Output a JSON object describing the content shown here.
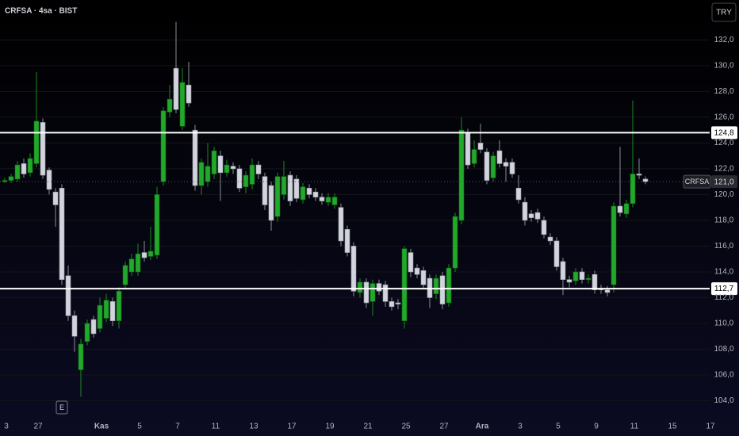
{
  "chart_data": {
    "type": "candlestick",
    "title": "CRFSA · 4sa · BIST",
    "currency": "TRY",
    "event_marker": "E",
    "up_color": "#22a82a",
    "down_color": "#d1d4dc",
    "grid": true,
    "ylim": [
      102.8,
      135.1
    ],
    "yticks": [
      {
        "value": 104,
        "label": "104,0"
      },
      {
        "value": 106,
        "label": "106,0"
      },
      {
        "value": 108,
        "label": "108,0"
      },
      {
        "value": 110,
        "label": "110,0"
      },
      {
        "value": 112,
        "label": "112,0"
      },
      {
        "value": 114,
        "label": "114,0"
      },
      {
        "value": 116,
        "label": "116,0"
      },
      {
        "value": 118,
        "label": "118,0"
      },
      {
        "value": 120,
        "label": "120,0"
      },
      {
        "value": 122,
        "label": "122,0"
      },
      {
        "value": 124,
        "label": "124,0"
      },
      {
        "value": 126,
        "label": "126,0"
      },
      {
        "value": 128,
        "label": "128,0"
      },
      {
        "value": 130,
        "label": "130,0"
      },
      {
        "value": 132,
        "label": "132,0"
      }
    ],
    "hlines": [
      {
        "value": 124.8,
        "label": "124,8"
      },
      {
        "value": 112.7,
        "label": "112,7"
      }
    ],
    "last_price": {
      "symbol": "CRFSA",
      "value": 121.0,
      "label": "121,0"
    },
    "categories": [
      "3",
      null,
      null,
      null,
      null,
      "27",
      null,
      null,
      null,
      null,
      null,
      null,
      null,
      null,
      null,
      "Kas",
      null,
      null,
      null,
      null,
      null,
      "5",
      null,
      null,
      null,
      null,
      null,
      "7",
      null,
      null,
      null,
      null,
      null,
      "11",
      null,
      null,
      null,
      null,
      null,
      "13",
      null,
      null,
      null,
      null,
      null,
      "17",
      null,
      null,
      null,
      null,
      null,
      "19",
      null,
      null,
      null,
      null,
      null,
      "21",
      null,
      null,
      null,
      null,
      null,
      "25",
      null,
      null,
      null,
      null,
      null,
      "27",
      null,
      null,
      null,
      null,
      null,
      "Ara",
      null,
      null,
      null,
      null,
      null,
      "3",
      null,
      null,
      null,
      null,
      null,
      "5",
      null,
      null,
      null,
      null,
      null,
      "9",
      null,
      null,
      null,
      null,
      null,
      "11",
      null,
      null,
      null,
      null,
      null,
      "15",
      null,
      null,
      null,
      null,
      null,
      "17"
    ],
    "open": [
      121.0,
      121.1,
      121.2,
      122.4,
      121.7,
      122.4,
      125.6,
      121.9,
      120.2,
      120.5,
      113.7,
      110.6,
      106.4,
      108.6,
      110.3,
      109.6,
      110.4,
      111.7,
      110.2,
      113.0,
      114.0,
      114.0,
      115.5,
      115.2,
      115.3,
      121.0,
      126.4,
      129.8,
      125.3,
      128.5,
      125.0,
      120.7,
      121.0,
      121.6,
      123.0,
      121.7,
      122.2,
      122.0,
      120.6,
      120.8,
      122.3,
      121.4,
      120.7,
      118.3,
      120.0,
      121.5,
      121.2,
      119.6,
      120.5,
      120.2,
      119.8,
      119.4,
      119.2,
      119.0,
      117.3,
      116.0,
      112.4,
      113.2,
      111.7,
      113.1,
      113.0,
      111.7,
      111.6,
      110.2,
      115.5,
      114.3,
      114.1,
      113.5,
      112.3,
      113.7,
      111.6,
      114.3,
      118.0,
      124.8,
      122.4,
      124.0,
      123.3,
      121.3,
      123.4,
      122.5,
      122.5,
      120.5,
      119.4,
      118.5,
      118.6,
      118.0,
      116.7,
      116.4,
      114.8,
      113.4,
      113.3,
      114.0,
      113.4,
      113.8,
      112.7,
      112.6,
      113.0,
      119.1,
      118.5,
      119.3,
      121.6,
      121.2,
      null,
      null,
      null,
      null,
      null,
      null,
      null,
      null,
      null,
      null
    ],
    "high": [
      121.3,
      121.6,
      122.6,
      122.8,
      123.2,
      129.5,
      125.9,
      122.1,
      120.5,
      120.8,
      114.5,
      111.0,
      108.8,
      110.3,
      110.6,
      112.0,
      112.3,
      112.0,
      112.8,
      114.8,
      115.4,
      116.2,
      116.4,
      117.5,
      120.6,
      126.8,
      128.5,
      133.4,
      129.8,
      130.3,
      125.4,
      122.8,
      124.0,
      123.7,
      123.4,
      122.7,
      122.5,
      122.3,
      121.8,
      122.8,
      122.6,
      121.7,
      121.0,
      121.7,
      122.6,
      121.8,
      121.5,
      120.9,
      120.8,
      120.5,
      120.1,
      120.1,
      120.1,
      119.3,
      117.6,
      116.3,
      113.5,
      113.5,
      113.4,
      113.4,
      113.3,
      112.0,
      111.9,
      116.0,
      115.8,
      114.6,
      114.4,
      113.8,
      113.8,
      114.0,
      114.6,
      118.6,
      126.0,
      125.1,
      124.2,
      125.5,
      123.6,
      123.3,
      124.2,
      122.8,
      122.8,
      121.5,
      119.8,
      118.8,
      118.9,
      118.3,
      117.0,
      116.7,
      115.1,
      113.7,
      114.3,
      114.3,
      113.8,
      114.1,
      113.0,
      112.9,
      119.4,
      123.7,
      119.6,
      127.3,
      122.8,
      121.4,
      null,
      null,
      null,
      null,
      null,
      null,
      null,
      null,
      null,
      null
    ],
    "low": [
      120.9,
      120.9,
      121.0,
      121.3,
      121.4,
      122.1,
      121.2,
      120.0,
      117.5,
      113.0,
      110.2,
      107.8,
      104.3,
      108.3,
      108.9,
      109.3,
      110.1,
      109.8,
      109.6,
      112.7,
      113.7,
      113.7,
      114.8,
      114.9,
      115.0,
      120.7,
      126.0,
      126.3,
      125.0,
      126.8,
      120.3,
      120.0,
      120.6,
      121.2,
      119.5,
      121.4,
      121.6,
      120.2,
      120.1,
      120.4,
      121.2,
      118.8,
      117.2,
      117.9,
      119.6,
      119.1,
      119.4,
      119.3,
      119.7,
      119.5,
      119.2,
      119.1,
      118.9,
      116.0,
      115.2,
      112.1,
      112.0,
      111.2,
      110.6,
      112.2,
      111.3,
      111.0,
      111.1,
      109.6,
      113.6,
      113.5,
      112.7,
      111.2,
      111.9,
      111.1,
      111.3,
      114.0,
      117.7,
      122.0,
      122.1,
      123.2,
      120.8,
      121.0,
      122.1,
      121.0,
      121.3,
      119.3,
      117.6,
      117.9,
      117.8,
      116.6,
      116.1,
      114.1,
      112.2,
      112.8,
      113.0,
      113.1,
      113.1,
      112.3,
      112.3,
      112.1,
      112.4,
      118.3,
      118.2,
      119.0,
      121.2,
      120.8,
      null,
      null,
      null,
      null,
      null,
      null,
      null,
      null,
      null,
      null
    ],
    "close": [
      121.1,
      121.4,
      122.3,
      121.6,
      122.8,
      125.7,
      121.5,
      120.4,
      119.2,
      113.4,
      110.6,
      109.0,
      108.4,
      110.0,
      109.2,
      111.4,
      111.8,
      110.2,
      112.5,
      114.5,
      115.0,
      115.4,
      115.1,
      115.6,
      120.0,
      126.5,
      127.4,
      126.6,
      128.7,
      127.1,
      120.7,
      122.5,
      122.2,
      123.4,
      121.7,
      122.3,
      122.0,
      120.5,
      121.5,
      122.3,
      121.6,
      119.2,
      118.0,
      121.4,
      121.4,
      119.5,
      119.7,
      120.6,
      120.0,
      119.8,
      119.5,
      119.8,
      119.8,
      116.4,
      115.5,
      112.5,
      113.2,
      111.6,
      113.1,
      112.5,
      111.7,
      111.3,
      111.5,
      115.8,
      114.0,
      113.8,
      113.0,
      112.0,
      113.5,
      111.5,
      114.3,
      118.3,
      125.0,
      122.3,
      123.5,
      123.5,
      121.1,
      123.0,
      122.4,
      122.2,
      121.6,
      119.6,
      118.0,
      118.2,
      118.1,
      116.9,
      116.4,
      114.4,
      113.4,
      113.2,
      114.0,
      113.4,
      113.5,
      112.6,
      112.6,
      112.4,
      119.1,
      118.6,
      119.3,
      121.6,
      121.5,
      121.0,
      null,
      null,
      null,
      null,
      null,
      null,
      null,
      null,
      null,
      null
    ]
  }
}
